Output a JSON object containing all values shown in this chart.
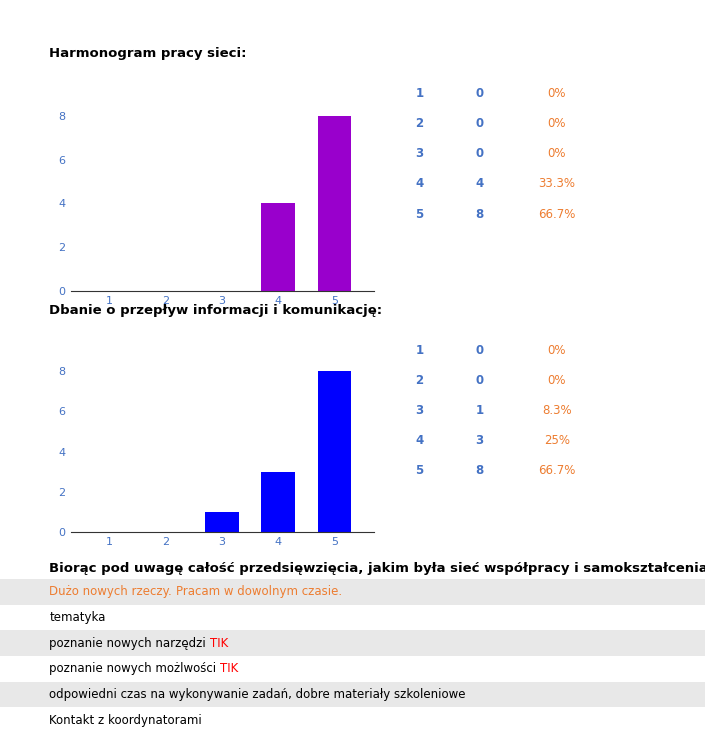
{
  "chart1": {
    "title": "Harmonogram pracy sieci:",
    "values": [
      0,
      0,
      0,
      4,
      8
    ],
    "categories": [
      1,
      2,
      3,
      4,
      5
    ],
    "bar_color": "#9900CC",
    "ylim": [
      0,
      9
    ],
    "yticks": [
      0,
      2,
      4,
      6,
      8
    ],
    "stats": [
      [
        "1",
        "0",
        "0%"
      ],
      [
        "2",
        "0",
        "0%"
      ],
      [
        "3",
        "0",
        "0%"
      ],
      [
        "4",
        "4",
        "33.3%"
      ],
      [
        "5",
        "8",
        "66.7%"
      ]
    ]
  },
  "chart2": {
    "title": "Dbanie o przepływ informacji i komunikację:",
    "values": [
      0,
      0,
      1,
      3,
      8
    ],
    "categories": [
      1,
      2,
      3,
      4,
      5
    ],
    "bar_color": "#0000FF",
    "ylim": [
      0,
      9
    ],
    "yticks": [
      0,
      2,
      4,
      6,
      8
    ],
    "stats": [
      [
        "1",
        "0",
        "0%"
      ],
      [
        "2",
        "0",
        "0%"
      ],
      [
        "3",
        "1",
        "8.3%"
      ],
      [
        "4",
        "3",
        "25%"
      ],
      [
        "5",
        "8",
        "66.7%"
      ]
    ]
  },
  "section3": {
    "title": "Biorąc pod uwagę całość przedsięwzięcia, jakim była sieć współpracy i samokształcenia, pr",
    "rows": [
      {
        "parts": [
          {
            "text": "Dużo nowych rzeczy. ",
            "color": "#ED7D31"
          },
          {
            "text": "Pracam w dowolnym czasie.",
            "color": "#ED7D31"
          }
        ]
      },
      {
        "parts": [
          {
            "text": "tematyka",
            "color": "#000000"
          }
        ]
      },
      {
        "parts": [
          {
            "text": "poznanie nowych narzędzi ",
            "color": "#000000"
          },
          {
            "text": "TIK",
            "color": "#FF0000"
          }
        ]
      },
      {
        "parts": [
          {
            "text": "poznanie nowych możlwości ",
            "color": "#000000"
          },
          {
            "text": "TIK",
            "color": "#FF0000"
          }
        ]
      },
      {
        "parts": [
          {
            "text": "odpowiedni czas na wykonywanie zadań, dobre materiały szkoleniowe",
            "color": "#000000"
          }
        ]
      },
      {
        "parts": [
          {
            "text": "Kontakt z koordynatorami",
            "color": "#000000"
          }
        ]
      }
    ]
  },
  "label_color_index": "#4472C4",
  "label_color_value": "#4472C4",
  "label_color_pct": "#ED7D31",
  "bg_color": "#FFFFFF",
  "title_color": "#000000",
  "row_bg_even": "#E8E8E8",
  "row_bg_odd": "#FFFFFF",
  "row_text_color": "#000000"
}
